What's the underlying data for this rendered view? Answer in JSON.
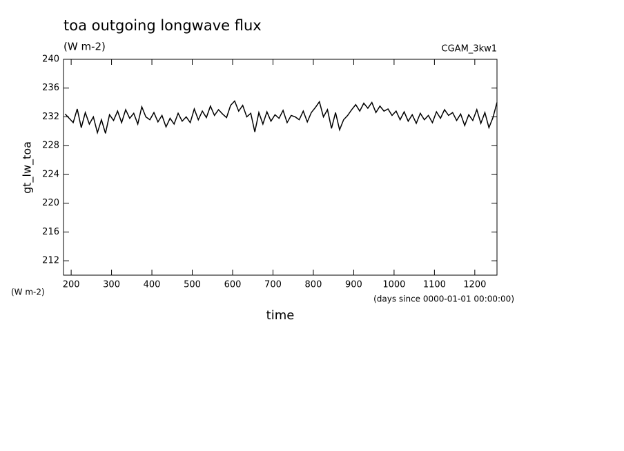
{
  "chart_data": {
    "type": "line",
    "title": "toa outgoing longwave flux",
    "subtitle": "(W m-2)",
    "annotation": "CGAM_3kw1",
    "y_label": "gt_lw_toa",
    "y_unit": "(W m-2)",
    "x_label": "time",
    "x_unit": "(days since 0000-01-01 00:00:00)",
    "color": "#000000",
    "x": [
      185,
      195,
      205,
      215,
      225,
      235,
      245,
      255,
      265,
      275,
      285,
      295,
      305,
      315,
      325,
      335,
      345,
      355,
      365,
      375,
      385,
      395,
      405,
      415,
      425,
      435,
      445,
      455,
      465,
      475,
      485,
      495,
      505,
      515,
      525,
      535,
      545,
      555,
      565,
      575,
      585,
      595,
      605,
      615,
      625,
      635,
      645,
      655,
      665,
      675,
      685,
      695,
      705,
      715,
      725,
      735,
      745,
      755,
      765,
      775,
      785,
      795,
      805,
      815,
      825,
      835,
      845,
      855,
      865,
      875,
      885,
      895,
      905,
      915,
      925,
      935,
      945,
      955,
      965,
      975,
      985,
      995,
      1005,
      1015,
      1025,
      1035,
      1045,
      1055,
      1065,
      1075,
      1085,
      1095,
      1105,
      1115,
      1125,
      1135,
      1145,
      1155,
      1165,
      1175,
      1185,
      1195,
      1205,
      1215,
      1225,
      1235,
      1245,
      1255
    ],
    "values": [
      232.4,
      231.8,
      231.2,
      233.1,
      230.5,
      232.6,
      231.0,
      232.0,
      229.8,
      231.6,
      229.7,
      232.3,
      231.5,
      232.8,
      231.2,
      233.0,
      231.8,
      232.5,
      231.0,
      233.4,
      232.0,
      231.6,
      232.6,
      231.3,
      232.2,
      230.6,
      231.8,
      231.0,
      232.5,
      231.4,
      232.0,
      231.2,
      233.1,
      231.6,
      232.8,
      231.9,
      233.5,
      232.2,
      233.0,
      232.4,
      231.9,
      233.6,
      234.2,
      232.8,
      233.6,
      232.0,
      232.5,
      229.9,
      232.6,
      231.0,
      232.7,
      231.4,
      232.3,
      231.8,
      232.9,
      231.2,
      232.2,
      232.0,
      231.6,
      232.8,
      231.3,
      232.6,
      233.3,
      234.1,
      232.0,
      233.0,
      230.4,
      232.6,
      230.2,
      231.6,
      232.2,
      233.0,
      233.7,
      232.8,
      233.9,
      233.2,
      234.0,
      232.6,
      233.5,
      232.8,
      233.1,
      232.2,
      232.8,
      231.6,
      232.7,
      231.4,
      232.3,
      231.1,
      232.5,
      231.6,
      232.2,
      231.2,
      232.7,
      231.8,
      233.0,
      232.2,
      232.6,
      231.5,
      232.4,
      230.8,
      232.3,
      231.5,
      233.0,
      231.1,
      232.6,
      230.5,
      231.9,
      234.0
    ],
    "xlim": [
      181,
      1255
    ],
    "ylim": [
      210,
      240
    ],
    "xticks": [
      200,
      300,
      400,
      500,
      600,
      700,
      800,
      900,
      1000,
      1100,
      1200
    ],
    "yticks": [
      212,
      216,
      220,
      224,
      228,
      232,
      236,
      240
    ]
  }
}
